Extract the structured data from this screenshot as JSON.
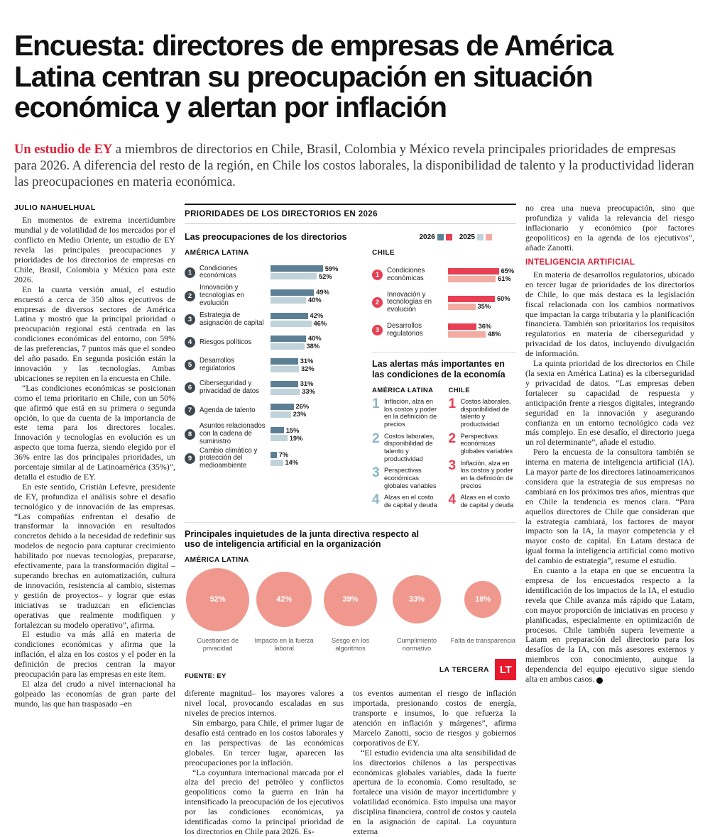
{
  "palette": {
    "accent_red": "#d92038",
    "logo_red": "#e8192d",
    "latam_badge": "#40484f",
    "latam_2026": "#5d7f94",
    "latam_2025": "#c0d2da",
    "chile_badge": "#e73f53",
    "chile_2026": "#e73f53",
    "chile_2025": "#f3aba2",
    "alert_latam_num": "#8cb4c9",
    "alert_chile_num": "#e73f53",
    "ai_circle": "#f0988e"
  },
  "headline": "Encuesta: directores de empresas de América Latina centran su preocupación en situación económica y alertan por inflación",
  "lede": {
    "lead_in": "Un estudio de EY",
    "text": " a miembros de directorios en Chile, Brasil, Colombia y México revela principales prioridades de empresas para 2026. A diferencia del resto de la región, en Chile los costos laborales, la disponibilidad de talento y la productividad lideran las preocupaciones en materia económica."
  },
  "byline": "JULIO NAHUELHUAL",
  "left_column": {
    "paragraphs": [
      "En momentos de extrema incertidumbre mundial y de volatilidad de los mercados por el conflicto en Medio Oriente, un estudio de EY revela las principales preocupaciones y prioridades de los directorios de empresas en Chile, Brasil, Colombia y México para este 2026.",
      "En la cuarta versión anual, el estudio encuestó a cerca de 350 altos ejecutivos de empresas de diversos sectores de América Latina y mostró que la principal prioridad o preocupación regional está centrada en las condiciones económicas del entorno, con 59% de las preferencias, 7 puntos más que el sondeo del año pasado. En segunda posición están la innovación y las tecnologías. Ambas ubicaciones se repiten en la encuesta en Chile.",
      "“Las condiciones económicas se posicionan como el tema prioritario en Chile, con un 50% que afirmó que está en su primera o segunda opción, lo que da cuenta de la importancia de este tema para los directores locales. Innovación y tecnologías en evolución es un aspecto que toma fuerza, siendo elegido por el 36% entre las dos principales prioridades, un porcentaje similar al de Latinoamérica (35%)”, detalla el estudio de EY.",
      "En este sentido, Cristián Lefevre, presidente de EY, profundiza el análisis sobre el desafío tecnológico y de innovación de las empresas. “Las compañías enfrentan el desafío de transformar la innovación en resultados concretos debido a la necesidad de redefinir sus modelos de negocio para capturar crecimiento habilitado por nuevas tecnologías, prepararse, efectivamente, para la transformación digital –superando brechas en automatización, cultura de innovación, resistencia al cambio, sistemas y gestión de proyectos– y lograr que estas iniciativas se traduzcan en eficiencias operativas que realmente modifiquen y fortalezcan su modelo operativo”, afirma.",
      "El estudio va más allá en materia de condiciones económicas y afirma que la inflación, el alza en los costos y el poder en la definición de precios centran la mayor preocupación para las empresas en este ítem.",
      "El alza del crudo a nivel internacional ha golpeado las economías de gran parte del mundo, las que han traspasado –en"
    ]
  },
  "mid_column_1": {
    "paragraphs": [
      "diferente magnitud– los mayores valores a nivel local, provocando escaladas en sus niveles de precios internos.",
      "Sin embargo, para Chile, el primer lugar de desafío está centrado en los costos laborales y en las perspectivas de las económicas globales. En tercer lugar, aparecen las preocupaciones por la inflación.",
      "“La coyuntura internacional marcada por el alza del precio del petróleo y conflictos geopolíticos como la guerra en Irán ha intensificado la preocupación de los ejecutivos por las condiciones económicas, ya identificadas como la principal prioridad de los directorios en Chile para 2026. Es-"
    ]
  },
  "mid_column_2": {
    "paragraphs": [
      "tos eventos aumentan el riesgo de inflación importada, presionando costos de energía, transporte e insumos, lo que refuerza la atención en inflación y márgenes”, afirma Marcelo Zanotti, socio de riesgos y gobiernos corporativos de EY.",
      "“El estudio evidencia una alta sensibilidad de los directorios chilenos a las perspectivas económicas globales variables, dada la fuerte apertura de la economía. Como resultado, se fortalece una visión de mayor incertidumbre y volatilidad económica. Esto impulsa una mayor disciplina financiera, control de costos y cautela en la asignación de capital. La coyuntura externa"
    ]
  },
  "right_column": {
    "paragraphs_before": [
      "no crea una nueva preocupación, sino que profundiza y valida la relevancia del riesgo inflacionario y económico (por factores geopolíticos) en la agenda de los ejecutivos”, añade Zanotti."
    ],
    "heading": "INTELIGENCIA ARTIFICIAL",
    "paragraphs_after": [
      "En materia de desarrollos regulatorios, ubicado en tercer lugar de prioridades de los directorios de Chile, lo que más destaca es la legislación fiscal relacionada con los cambios normativos que impactan la carga tributaria y la planificación financiera. También son prioritarios los requisitos regulatorios en materia de ciberseguridad y privacidad de los datos, incluyendo divulgación de información.",
      "La quinta prioridad de los directorios en Chile (la sexta en América Latina) es la ciberseguridad y privacidad de datos. “Las empresas deben fortalecer su capacidad de respuesta y anticipación frente a riesgos digitales, integrando seguridad en la innovación y asegurando confianza en un entorno tecnológico cada vez más complejo. En ese desafío, el directorio juega un rol determinante”, añade el estudio.",
      "Pero la encuesta de la consultora también se interna en materia de inteligencia artificial (IA). La mayor parte de los directores latinoamericanos considera que la estrategia de sus empresas no cambiará en los próximos tres años, mientras que en Chile la tendencia es menos clara. “Para aquellos directores de Chile que consideran que la estrategia cambiará, los factores de mayor impacto son la IA, la mayor competencia y el mayor costo de capital. En Latam destaca de igual forma la inteligencia artificial como motivo del cambio de estrategia”, resume el estudio.",
      "En cuanto a la etapa en que se encuentra la empresa de los encuestados respecto a la identificación de los impactos de la IA, el estudio revela que Chile avanza más rápido que Latam, con mayor proporción de iniciativas en proceso y planificadas, especialmente en optimización de procesos. Chile también supera levemente a Latam en preparación del directorio para los desafíos de la IA, con más asesores externos y miembros con conocimiento, aunque la dependencia del equipo ejecutivo sigue siendo alta en ambos casos."
    ],
    "end_mark": "P"
  },
  "infographic": {
    "title": "PRIORIDADES DE LOS DIRECTORIOS EN 2026",
    "chart_heading": "Las preocupaciones de los directorios",
    "legend": [
      {
        "label": "2026",
        "colors": [
          "#5d7f94",
          "#e73f53"
        ]
      },
      {
        "label": "2025",
        "colors": [
          "#c0d2da",
          "#f3aba2"
        ]
      }
    ],
    "latam_label": "AMÉRICA LATINA",
    "chile_label": "CHILE",
    "alerts": {
      "heading": "Las alertas más importantes en las condiciones de la economía",
      "groups": [
        {
          "name": "AMÉRICA LATINA",
          "color": "#8cb4c9",
          "items": [
            "Inflación, alza en los costos y poder en la definición de precios",
            "Costos laborales, disponibilidad de talento y productividad",
            "Perspectivas económicas globales variables",
            "Alzas en el costo de capital y deuda"
          ]
        },
        {
          "name": "CHILE",
          "color": "#e73f53",
          "items": [
            "Costos laborales, disponibilidad de talento y productividad",
            "Perspectivas económicas globales variables",
            "Inflación, alza en los costos y poder en la definición de precios",
            "Alzas en el costo de capital y deuda"
          ]
        }
      ]
    },
    "ai": {
      "heading": "Principales inquietudes de la junta directiva respecto al uso de inteligencia artificial en la organización",
      "group_label": "AMÉRICA LATINA"
    },
    "source": "FUENTE: EY",
    "credit": "LA TERCERA",
    "logo_text": "LT"
  },
  "chart_data": [
    {
      "type": "bar",
      "title": "Las preocupaciones de los directorios — AMÉRICA LATINA",
      "orientation": "horizontal",
      "unit": "%",
      "xlim": [
        0,
        70
      ],
      "categories": [
        "Condiciones económicas",
        "Innovación y tecnologías en evolución",
        "Estrategia de asignación de capital",
        "Riesgos políticos",
        "Desarrollos regulatorios",
        "Ciberseguridad y privacidad de datos",
        "Agenda de talento",
        "Asuntos relacionados con la cadena de suministro",
        "Cambio climático y protección del medioambiente"
      ],
      "series": [
        {
          "name": "2026",
          "values": [
            59,
            49,
            42,
            40,
            31,
            31,
            26,
            15,
            7
          ]
        },
        {
          "name": "2025",
          "values": [
            52,
            40,
            46,
            38,
            32,
            33,
            23,
            19,
            14
          ]
        }
      ]
    },
    {
      "type": "bar",
      "title": "Las preocupaciones de los directorios — CHILE",
      "orientation": "horizontal",
      "unit": "%",
      "xlim": [
        0,
        70
      ],
      "categories": [
        "Condiciones económicas",
        "Innovación y tecnologías en evolución",
        "Desarrollos regulatorios"
      ],
      "series": [
        {
          "name": "2026",
          "values": [
            65,
            60,
            36
          ]
        },
        {
          "name": "2025",
          "values": [
            61,
            35,
            48
          ]
        }
      ]
    },
    {
      "type": "bar",
      "style": "proportional-circles",
      "title": "Principales inquietudes de la junta directiva respecto al uso de inteligencia artificial en la organización — AMÉRICA LATINA",
      "unit": "%",
      "categories": [
        "Cuestiones de privacidad",
        "Impacto en la fuerza laboral",
        "Sesgo en los algoritmos",
        "Cumplimiento normativo",
        "Falta de transparencia"
      ],
      "values": [
        52,
        42,
        39,
        33,
        18
      ]
    }
  ]
}
